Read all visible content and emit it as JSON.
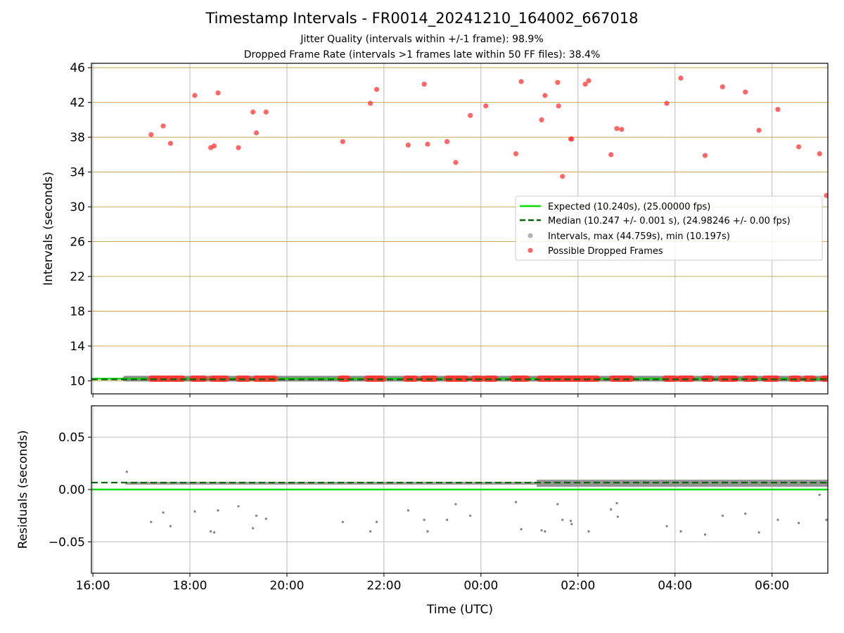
{
  "header": {
    "title": "Timestamp Intervals - FR0014_20241210_164002_667018",
    "subtitle_1": "Jitter Quality (intervals within +/-1 frame): 98.9%",
    "subtitle_2": "Dropped Frame Rate (intervals >1 frames late within 50 FF files): 38.4%"
  },
  "colors": {
    "expected": "#00dd00",
    "median": "#006400",
    "intervals": "#808080",
    "dropped": "#ff3333",
    "major_grid": "#c8a856",
    "minor_grid": "#bbbbbb"
  },
  "chart_data": [
    {
      "type": "scatter",
      "panel": "intervals",
      "xlabel": "",
      "ylabel": "Intervals (seconds)",
      "x_unit": "hours since 16:00 UTC (10 Dec 2024)",
      "xlim": [
        15.97,
        31.15
      ],
      "ylim": [
        8.5,
        46.5
      ],
      "yticks": [
        10,
        14,
        18,
        22,
        26,
        30,
        34,
        38,
        42,
        46
      ],
      "ytick_labels": [
        "10",
        "14",
        "18",
        "22",
        "26",
        "30",
        "34",
        "38",
        "42",
        "46"
      ],
      "legend_position": "center-right",
      "legend": [
        "Expected (10.240s), (25.00000 fps)",
        "Median (10.247 +/- 0.001 s), (24.98246 +/- 0.00 fps)",
        "Intervals, max (44.759s), min (10.197s)",
        "Possible Dropped Frames"
      ],
      "expected_value": 10.24,
      "median_value": 10.247,
      "interval_band": {
        "x_start": 16.67,
        "x_end": 31.15,
        "value": 10.247
      },
      "dropped_at_baseline_ranges": [
        [
          17.2,
          17.45
        ],
        [
          17.5,
          17.85
        ],
        [
          18.05,
          18.3
        ],
        [
          18.45,
          18.75
        ],
        [
          19.0,
          19.2
        ],
        [
          19.35,
          19.75
        ],
        [
          21.1,
          21.25
        ],
        [
          21.65,
          21.98
        ],
        [
          22.45,
          22.65
        ],
        [
          22.8,
          23.05
        ],
        [
          23.3,
          23.7
        ],
        [
          23.85,
          24.0
        ],
        [
          24.1,
          24.3
        ],
        [
          24.65,
          24.95
        ],
        [
          25.2,
          25.5
        ],
        [
          25.55,
          26.05
        ],
        [
          26.1,
          26.4
        ],
        [
          26.7,
          27.1
        ],
        [
          27.8,
          28.0
        ],
        [
          28.1,
          28.35
        ],
        [
          28.6,
          28.75
        ],
        [
          28.95,
          29.25
        ],
        [
          29.45,
          29.65
        ],
        [
          29.85,
          30.1
        ],
        [
          30.4,
          30.55
        ],
        [
          30.7,
          30.85
        ],
        [
          31.05,
          31.15
        ]
      ],
      "series": [
        {
          "name": "Possible Dropped Frames",
          "x": [
            17.2,
            17.45,
            17.6,
            18.1,
            18.43,
            18.5,
            18.58,
            19.0,
            19.3,
            19.37,
            19.57,
            21.15,
            21.72,
            21.85,
            22.5,
            22.83,
            22.9,
            23.3,
            23.48,
            23.78,
            24.1,
            24.72,
            24.83,
            25.25,
            25.32,
            25.58,
            25.6,
            25.68,
            25.85,
            25.87,
            26.15,
            26.22,
            26.68,
            26.8,
            26.9,
            27.83,
            28.12,
            28.62,
            28.98,
            29.45,
            29.73,
            30.12,
            30.55,
            30.98,
            31.12
          ],
          "y": [
            38.3,
            39.3,
            37.3,
            42.8,
            36.8,
            37.0,
            43.1,
            36.8,
            40.9,
            38.5,
            40.9,
            37.5,
            41.9,
            43.5,
            37.1,
            44.1,
            37.2,
            37.5,
            35.1,
            40.5,
            41.6,
            36.1,
            44.4,
            40.0,
            42.8,
            44.3,
            41.6,
            33.5,
            37.8,
            37.8,
            44.1,
            44.5,
            36.0,
            39.0,
            38.9,
            41.9,
            44.8,
            35.9,
            43.8,
            43.2,
            38.8,
            41.2,
            36.9,
            36.1,
            31.3
          ]
        }
      ]
    },
    {
      "type": "scatter",
      "panel": "residuals",
      "xlabel": "Time (UTC)",
      "ylabel": "Residuals (seconds)",
      "x_unit": "hours since 16:00 UTC (10 Dec 2024)",
      "xlim": [
        15.97,
        31.15
      ],
      "ylim": [
        -0.08,
        0.08
      ],
      "yticks": [
        -0.05,
        0.0,
        0.05
      ],
      "ytick_labels": [
        "−0.05",
        "0.00",
        "0.05"
      ],
      "xticks": [
        16,
        18,
        20,
        22,
        24,
        26,
        28,
        30
      ],
      "xtick_labels": [
        "16:00",
        "18:00",
        "20:00",
        "22:00",
        "00:00",
        "02:00",
        "04:00",
        "06:00"
      ],
      "expected_value": 0.0,
      "median_value": 0.0066,
      "residual_band": {
        "x_start": 16.67,
        "x_end": 31.15,
        "value": 0.0066
      },
      "series": [
        {
          "name": "Outlier residuals",
          "x": [
            16.7,
            17.2,
            17.45,
            17.6,
            18.1,
            18.43,
            18.5,
            18.58,
            19.0,
            19.3,
            19.37,
            19.57,
            21.15,
            21.72,
            21.85,
            22.5,
            22.83,
            22.9,
            23.3,
            23.48,
            23.78,
            24.72,
            24.83,
            25.25,
            25.32,
            25.58,
            25.68,
            25.85,
            25.87,
            26.22,
            26.68,
            26.8,
            26.82,
            27.83,
            28.12,
            28.62,
            28.98,
            29.45,
            29.73,
            30.12,
            30.55,
            30.98,
            31.12
          ],
          "y": [
            0.017,
            -0.031,
            -0.022,
            -0.035,
            -0.021,
            -0.04,
            -0.041,
            -0.02,
            -0.016,
            -0.037,
            -0.025,
            -0.028,
            -0.031,
            -0.04,
            -0.031,
            -0.02,
            -0.029,
            -0.04,
            -0.029,
            -0.014,
            -0.025,
            -0.012,
            -0.038,
            -0.039,
            -0.04,
            -0.014,
            -0.029,
            -0.03,
            -0.033,
            -0.04,
            -0.019,
            -0.013,
            -0.026,
            -0.035,
            -0.04,
            -0.043,
            -0.025,
            -0.023,
            -0.041,
            -0.029,
            -0.032,
            -0.005,
            -0.029
          ]
        }
      ]
    }
  ]
}
